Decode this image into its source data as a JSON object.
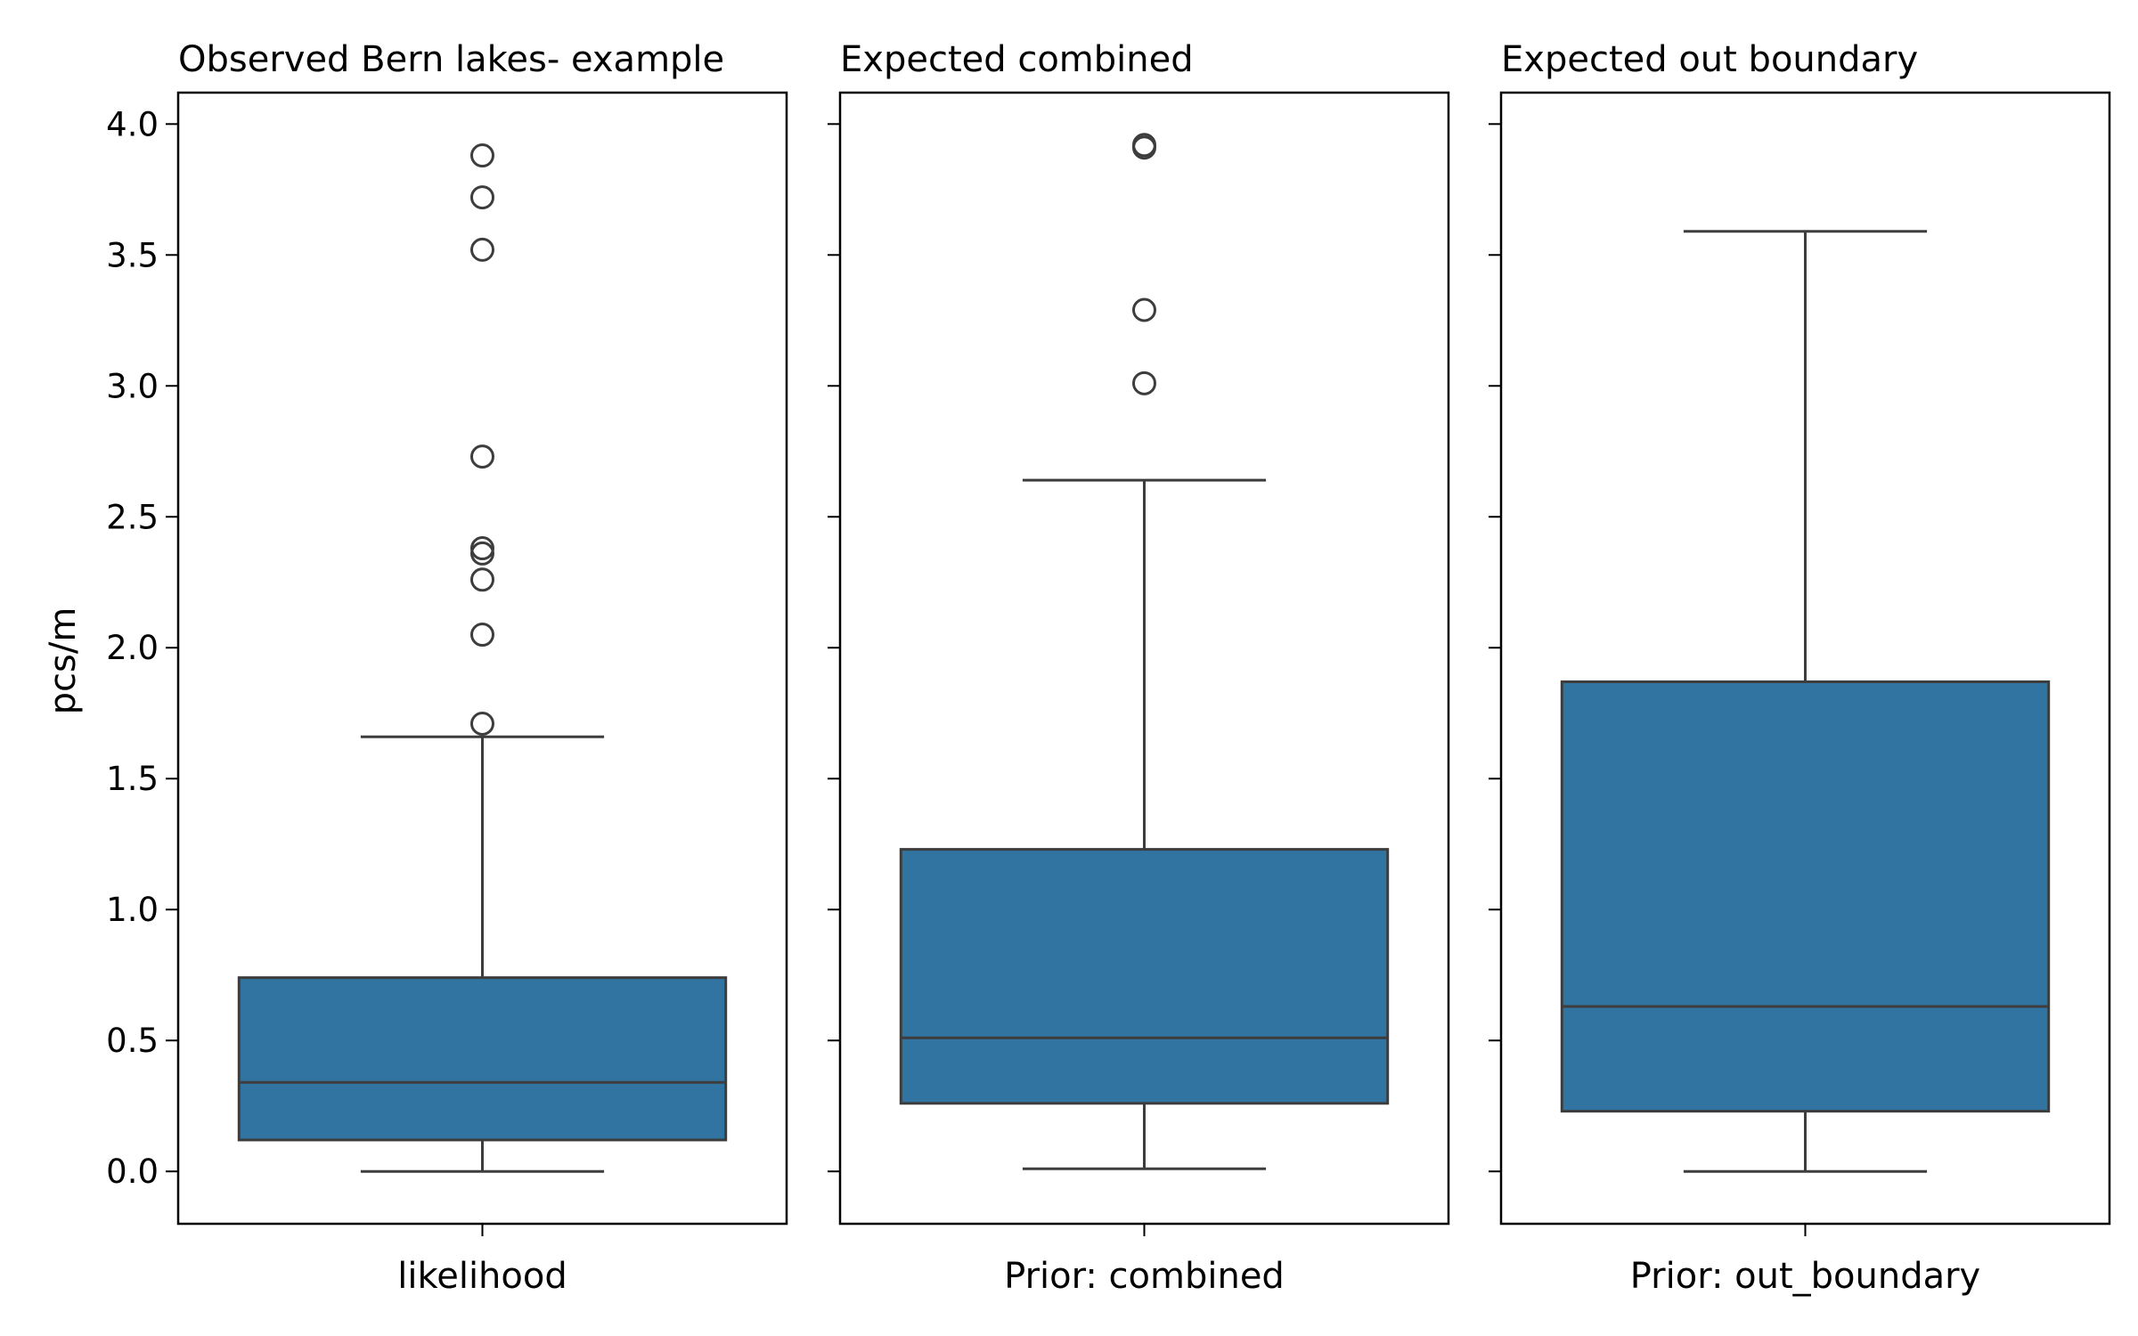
{
  "chart_data": {
    "type": "box",
    "ylabel": "pcs/m",
    "ylim": [
      -0.2,
      4.12
    ],
    "yticks": [
      "0.0",
      "0.5",
      "1.0",
      "1.5",
      "2.0",
      "2.5",
      "3.0",
      "3.5",
      "4.0"
    ],
    "shared_y": true,
    "box_color": "#3274a1",
    "line_color": "#3d3d3d",
    "panels": [
      {
        "title": "Observed Bern lakes- example",
        "category": "likelihood",
        "whisker_low": 0.0,
        "q1": 0.12,
        "median": 0.34,
        "q3": 0.74,
        "whisker_high": 1.66,
        "outliers": [
          1.71,
          2.05,
          2.26,
          2.36,
          2.38,
          2.73,
          3.52,
          3.72,
          3.88
        ]
      },
      {
        "title": "Expected combined",
        "category": "Prior: combined",
        "whisker_low": 0.01,
        "q1": 0.26,
        "median": 0.51,
        "q3": 1.23,
        "whisker_high": 2.64,
        "outliers": [
          3.01,
          3.29,
          3.91,
          3.92
        ]
      },
      {
        "title": "Expected out boundary",
        "category": "Prior: out_boundary",
        "whisker_low": 0.0,
        "q1": 0.23,
        "median": 0.63,
        "q3": 1.87,
        "whisker_high": 3.59,
        "outliers": []
      }
    ]
  }
}
